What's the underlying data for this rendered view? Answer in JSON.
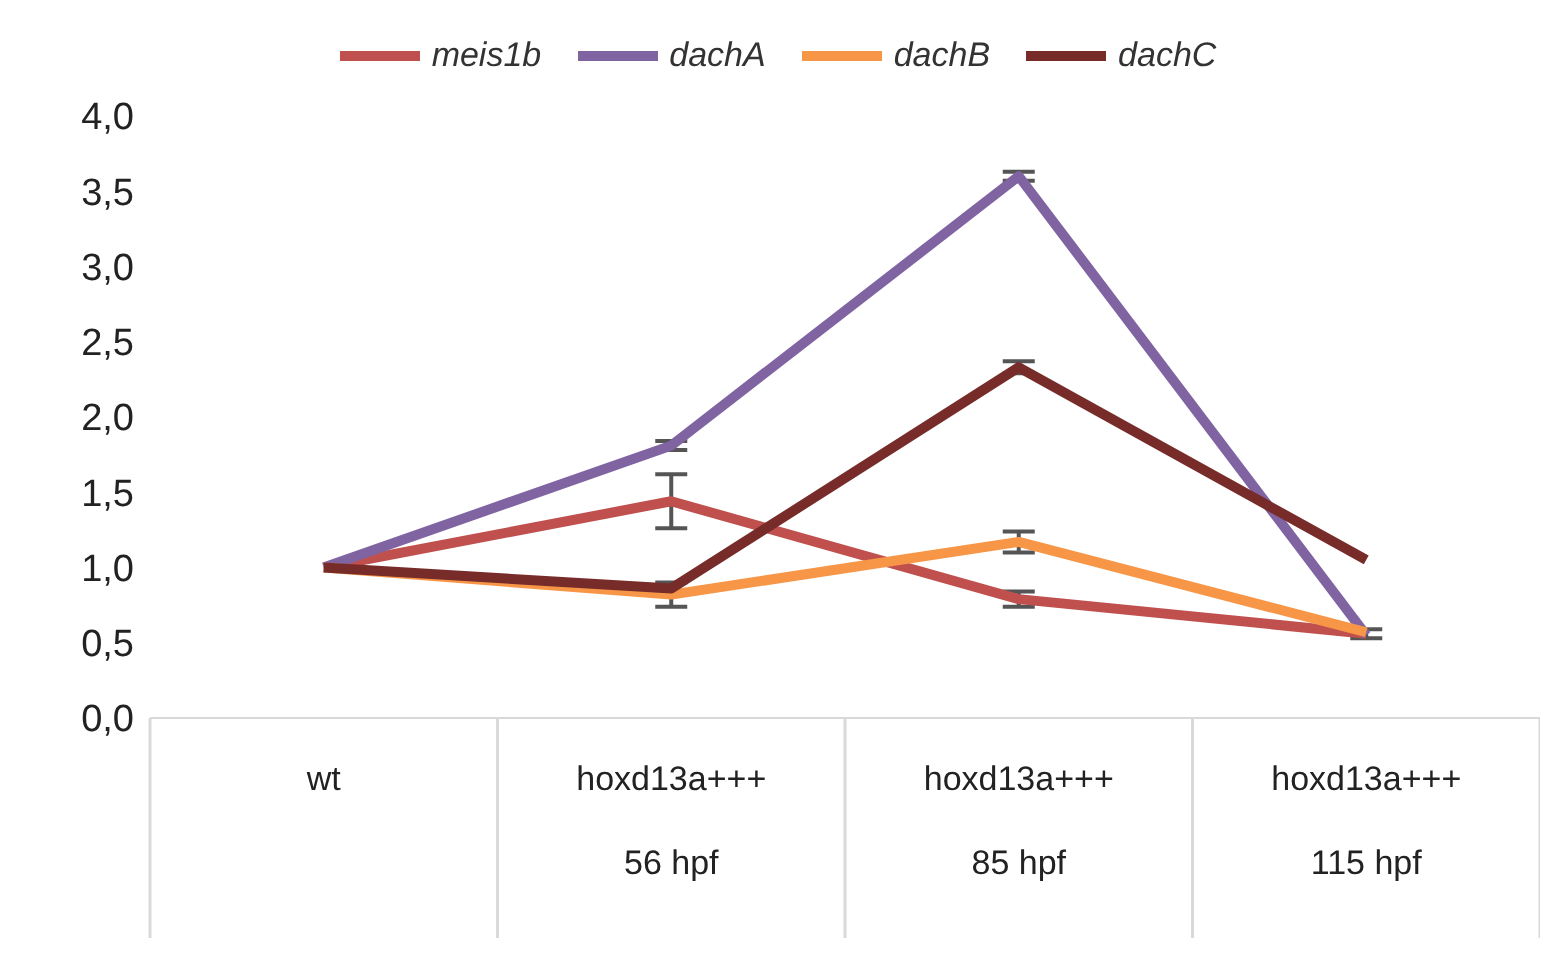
{
  "chart_data": {
    "type": "line",
    "categories": [
      "wt",
      "hoxd13a+++\n56 hpf",
      "hoxd13a+++\n85 hpf",
      "hoxd13a+++\n115 hpf"
    ],
    "series": [
      {
        "name": "meis1b",
        "color": "#c0504d",
        "values": [
          1.0,
          1.44,
          0.79,
          0.56
        ],
        "errors": [
          null,
          0.18,
          0.05,
          0.03
        ]
      },
      {
        "name": "dachA",
        "color": "#8064a2",
        "values": [
          1.0,
          1.81,
          3.6,
          0.55
        ],
        "errors": [
          null,
          0.03,
          0.03,
          null
        ]
      },
      {
        "name": "dachB",
        "color": "#f79646",
        "values": [
          1.0,
          0.82,
          1.17,
          0.57
        ],
        "errors": [
          null,
          0.08,
          0.07,
          null
        ]
      },
      {
        "name": "dachC",
        "color": "#772c2a",
        "values": [
          1.0,
          0.86,
          2.33,
          1.05
        ],
        "errors": [
          null,
          null,
          0.04,
          null
        ]
      }
    ],
    "ylim": [
      0,
      4
    ],
    "yticks": [
      {
        "value": 0,
        "label": "0,0"
      },
      {
        "value": 0.5,
        "label": "0,5"
      },
      {
        "value": 1,
        "label": "1,0"
      },
      {
        "value": 1.5,
        "label": "1,5"
      },
      {
        "value": 2,
        "label": "2,0"
      },
      {
        "value": 2.5,
        "label": "2,5"
      },
      {
        "value": 3,
        "label": "3,0"
      },
      {
        "value": 3.5,
        "label": "3,5"
      },
      {
        "value": 4,
        "label": "4,0"
      }
    ],
    "grid": false,
    "legend": "top",
    "marker": "none",
    "line_style": "solid"
  }
}
